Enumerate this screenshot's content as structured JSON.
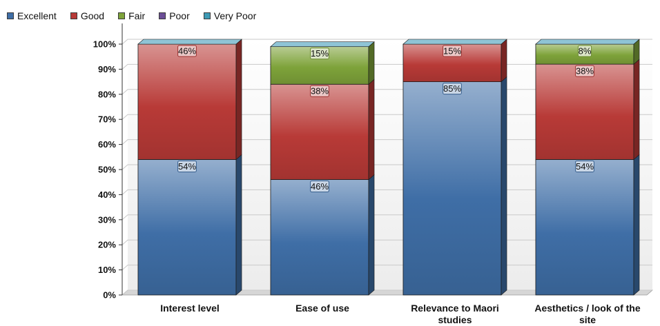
{
  "chart_data": {
    "type": "bar",
    "stacked": true,
    "percent": true,
    "title": "",
    "xlabel": "",
    "ylabel": "",
    "categories": [
      [
        "Interest level"
      ],
      [
        "Ease of use"
      ],
      [
        "Relevance to Maori",
        "studies"
      ],
      [
        "Aesthetics / look of the",
        "site"
      ]
    ],
    "ylim": [
      0,
      100
    ],
    "yticks": [
      "0%",
      "10%",
      "20%",
      "30%",
      "40%",
      "50%",
      "60%",
      "70%",
      "80%",
      "90%",
      "100%"
    ],
    "legend_position": "top-left",
    "series": [
      {
        "name": "Excellent",
        "color": "#3f6ea6",
        "values": [
          54,
          46,
          85,
          54
        ]
      },
      {
        "name": "Good",
        "color": "#b83a37",
        "values": [
          46,
          38,
          15,
          38
        ]
      },
      {
        "name": "Fair",
        "color": "#7ea33a",
        "values": [
          0,
          15,
          0,
          8
        ]
      },
      {
        "name": "Poor",
        "color": "#6b4e96",
        "values": [
          0,
          0,
          0,
          0
        ]
      },
      {
        "name": "Very Poor",
        "color": "#3e9ab5",
        "values": [
          0,
          0,
          0,
          0
        ]
      }
    ]
  }
}
